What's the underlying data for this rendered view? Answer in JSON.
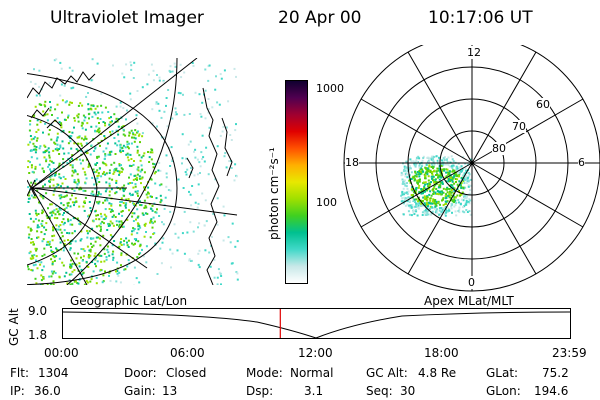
{
  "header": {
    "title": "Ultraviolet Imager",
    "date": "20 Apr 00",
    "time": "10:17:06 UT"
  },
  "colorbar": {
    "label": "photon cm⁻²s⁻¹",
    "tick_1000": "1000",
    "tick_100": "100",
    "colors": [
      "#ffffff",
      "#c8e8e8",
      "#40d8c8",
      "#00c090",
      "#40d020",
      "#a0e000",
      "#e8e800",
      "#ffb000",
      "#ff5000",
      "#e00000",
      "#a00030",
      "#500050",
      "#100030"
    ]
  },
  "polar": {
    "mlt_top": "12",
    "mlt_left": "18",
    "mlt_right": "6",
    "mlt_bottom": "0",
    "lat_60": "60",
    "lat_70": "70",
    "lat_80": "80"
  },
  "timeline": {
    "left_label": "Geographic Lat/Lon",
    "right_label": "Apex MLat/MLT",
    "axis_title": "GC Alt",
    "y_top": "9.0",
    "y_bottom": "1.8",
    "x_ticks": [
      "00:00",
      "06:00",
      "12:00",
      "18:00",
      "23:59"
    ],
    "current_time_fraction": 0.4286
  },
  "info": {
    "flt_label": "Flt:",
    "flt_value": "1304",
    "ip_label": "IP:",
    "ip_value": "36.0",
    "door_label": "Door:",
    "door_value": "Closed",
    "gain_label": "Gain:",
    "gain_value": "13",
    "mode_label": "Mode:",
    "mode_value": "Normal",
    "dsp_label": "Dsp:",
    "dsp_value": "3.1",
    "gcalt_label": "GC Alt:",
    "gcalt_value": "4.8 Re",
    "seq_label": "Seq:",
    "seq_value": "30",
    "glat_label": "GLat:",
    "glat_value": "75.2",
    "glon_label": "GLon:",
    "glon_value": "194.6"
  }
}
